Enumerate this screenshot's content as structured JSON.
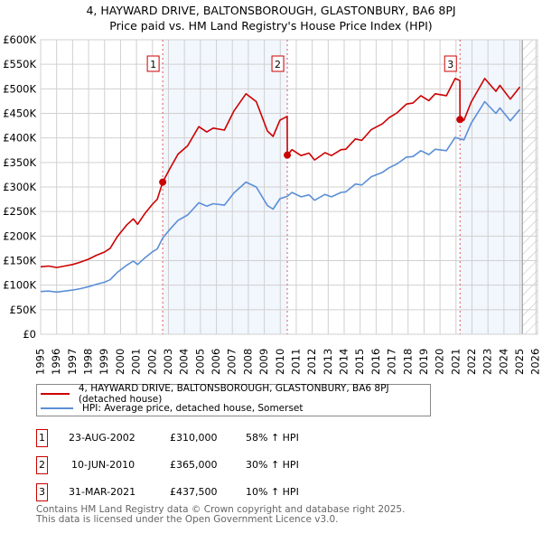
{
  "chart_data": {
    "type": "line",
    "title": "4, HAYWARD DRIVE, BALTONSBOROUGH, GLASTONBURY, BA6 8PJ",
    "subtitle": "Price paid vs. HM Land Registry's House Price Index (HPI)",
    "xlim": [
      1995,
      2026.1
    ],
    "ylim": [
      0,
      600000
    ],
    "grid": true,
    "x_ticks": [
      1995,
      1996,
      1997,
      1998,
      1999,
      2000,
      2001,
      2002,
      2003,
      2004,
      2005,
      2006,
      2007,
      2008,
      2009,
      2010,
      2011,
      2012,
      2013,
      2014,
      2015,
      2016,
      2017,
      2018,
      2019,
      2020,
      2021,
      2022,
      2023,
      2024,
      2025,
      2026
    ],
    "y_ticks": [
      {
        "v": 0,
        "label": "£0"
      },
      {
        "v": 50000,
        "label": "£50K"
      },
      {
        "v": 100000,
        "label": "£100K"
      },
      {
        "v": 150000,
        "label": "£150K"
      },
      {
        "v": 200000,
        "label": "£200K"
      },
      {
        "v": 250000,
        "label": "£250K"
      },
      {
        "v": 300000,
        "label": "£300K"
      },
      {
        "v": 350000,
        "label": "£350K"
      },
      {
        "v": 400000,
        "label": "£400K"
      },
      {
        "v": 450000,
        "label": "£450K"
      },
      {
        "v": 500000,
        "label": "£500K"
      },
      {
        "v": 550000,
        "label": "£550K"
      },
      {
        "v": 600000,
        "label": "£600K"
      }
    ],
    "shaded_ranges": [
      [
        2002.64,
        2010.44
      ],
      [
        2021.25,
        2025.15
      ]
    ],
    "forecast_hatch_from": 2025.15,
    "series": [
      {
        "name": "4, HAYWARD DRIVE, BALTONSBOROUGH, GLASTONBURY, BA6 8PJ (detached house)",
        "color": "#cc0000",
        "x": [
          1995.0,
          1995.5,
          1996.0,
          1996.5,
          1997.0,
          1997.5,
          1998.0,
          1998.5,
          1999.0,
          1999.35,
          1999.8,
          2000.4,
          2000.8,
          2001.07,
          2001.5,
          2002.0,
          2002.3,
          2002.64,
          2003.1,
          2003.6,
          2004.2,
          2004.9,
          2005.4,
          2005.8,
          2006.5,
          2007.1,
          2007.85,
          2008.5,
          2009.2,
          2009.55,
          2009.98,
          2010.43,
          2010.44,
          2010.73,
          2011.3,
          2011.8,
          2012.15,
          2012.8,
          2013.2,
          2013.8,
          2014.1,
          2014.7,
          2015.1,
          2015.7,
          2016.4,
          2016.8,
          2017.3,
          2017.9,
          2018.3,
          2018.8,
          2019.3,
          2019.7,
          2020.4,
          2020.95,
          2021.24,
          2021.25,
          2021.5,
          2021.95,
          2022.8,
          2023.5,
          2023.75,
          2024.4,
          2025.0
        ],
        "y": [
          137500,
          139000,
          136000,
          139000,
          142000,
          147000,
          153000,
          161000,
          167500,
          175000,
          199000,
          223000,
          235000,
          224000,
          245000,
          265000,
          275000,
          310000,
          338000,
          367000,
          384000,
          423000,
          412000,
          420000,
          416000,
          455000,
          490000,
          474000,
          414000,
          403000,
          436000,
          444000,
          365000,
          376000,
          364000,
          369000,
          355000,
          370000,
          364000,
          376000,
          377000,
          398000,
          395000,
          417000,
          429000,
          441000,
          451000,
          469000,
          471000,
          486000,
          476000,
          490000,
          486000,
          521000,
          517000,
          437500,
          436000,
          473000,
          521000,
          495000,
          507000,
          479000,
          504000
        ]
      },
      {
        "name": "HPI: Average price, detached house, Somerset",
        "color": "#5b8fd6",
        "x": [
          1995.0,
          1995.5,
          1996.0,
          1996.5,
          1997.0,
          1997.5,
          1998.0,
          1998.5,
          1999.0,
          1999.35,
          1999.8,
          2000.4,
          2000.8,
          2001.07,
          2001.5,
          2002.0,
          2002.3,
          2002.64,
          2003.1,
          2003.6,
          2004.2,
          2004.9,
          2005.4,
          2005.8,
          2006.5,
          2007.1,
          2007.85,
          2008.5,
          2009.2,
          2009.55,
          2009.98,
          2010.44,
          2010.73,
          2011.3,
          2011.8,
          2012.15,
          2012.8,
          2013.2,
          2013.8,
          2014.1,
          2014.7,
          2015.1,
          2015.7,
          2016.4,
          2016.8,
          2017.3,
          2017.9,
          2018.3,
          2018.8,
          2019.3,
          2019.7,
          2020.4,
          2020.95,
          2021.25,
          2021.5,
          2021.95,
          2022.8,
          2023.5,
          2023.75,
          2024.4,
          2025.0
        ],
        "y": [
          87000,
          88000,
          86000,
          88000,
          90000,
          93000,
          97000,
          102000,
          106000,
          111000,
          126000,
          141000,
          149000,
          142000,
          155000,
          168000,
          174000,
          196000,
          214000,
          232000,
          243000,
          268000,
          261000,
          266000,
          263000,
          288000,
          310000,
          300000,
          262000,
          255000,
          276000,
          281000,
          289000,
          280000,
          284000,
          273000,
          285000,
          280000,
          289000,
          290000,
          306000,
          304000,
          321000,
          330000,
          339000,
          347000,
          361000,
          362000,
          374000,
          366000,
          377000,
          374000,
          401000,
          398000,
          396000,
          430000,
          474000,
          450000,
          461000,
          435000,
          458000
        ]
      }
    ],
    "sales": [
      {
        "n": "1",
        "x": 2002.64,
        "y": 310000,
        "date": "23-AUG-2002",
        "price": "£310,000",
        "hpi": "58% ↑ HPI"
      },
      {
        "n": "2",
        "x": 2010.44,
        "y": 365000,
        "date": "10-JUN-2010",
        "price": "£365,000",
        "hpi": "30% ↑ HPI"
      },
      {
        "n": "3",
        "x": 2021.25,
        "y": 437500,
        "date": "31-MAR-2021",
        "price": "£437,500",
        "hpi": "10% ↑ HPI"
      }
    ]
  },
  "legend": {
    "property": "4, HAYWARD DRIVE, BALTONSBOROUGH, GLASTONBURY, BA6 8PJ (detached house)",
    "hpi": "HPI: Average price, detached house, Somerset"
  },
  "footer": {
    "line1": "Contains HM Land Registry data © Crown copyright and database right 2025.",
    "line2": "This data is licensed under the Open Government Licence v3.0."
  }
}
